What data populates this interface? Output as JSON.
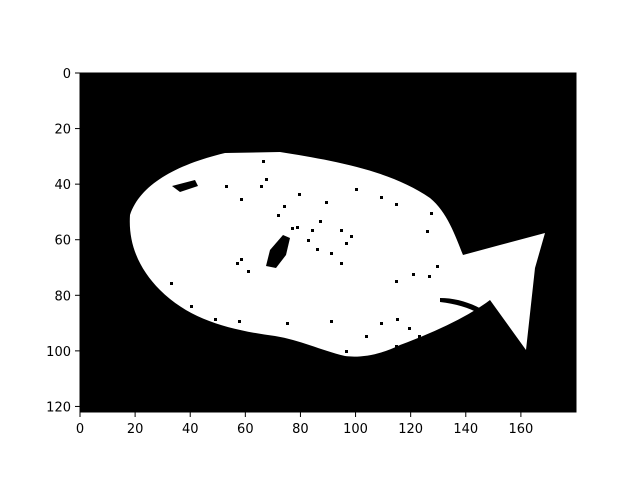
{
  "figure": {
    "background": "#ffffff",
    "image": {
      "description_color_fg": "#ffffff",
      "description_color_bg": "#000000"
    }
  },
  "chart_data": {
    "type": "heatmap",
    "title": "",
    "xlabel": "",
    "ylabel": "",
    "xlim": [
      0,
      180
    ],
    "ylim": [
      122,
      0
    ],
    "x_ticks": [
      "0",
      "20",
      "40",
      "60",
      "80",
      "100",
      "120",
      "140",
      "160"
    ],
    "y_ticks": [
      "0",
      "20",
      "40",
      "60",
      "80",
      "100",
      "120"
    ],
    "colormap": "binary",
    "colors": {
      "foreground": "#ffffff",
      "background": "#000000"
    },
    "content": "binary mask of a fish silhouette"
  }
}
